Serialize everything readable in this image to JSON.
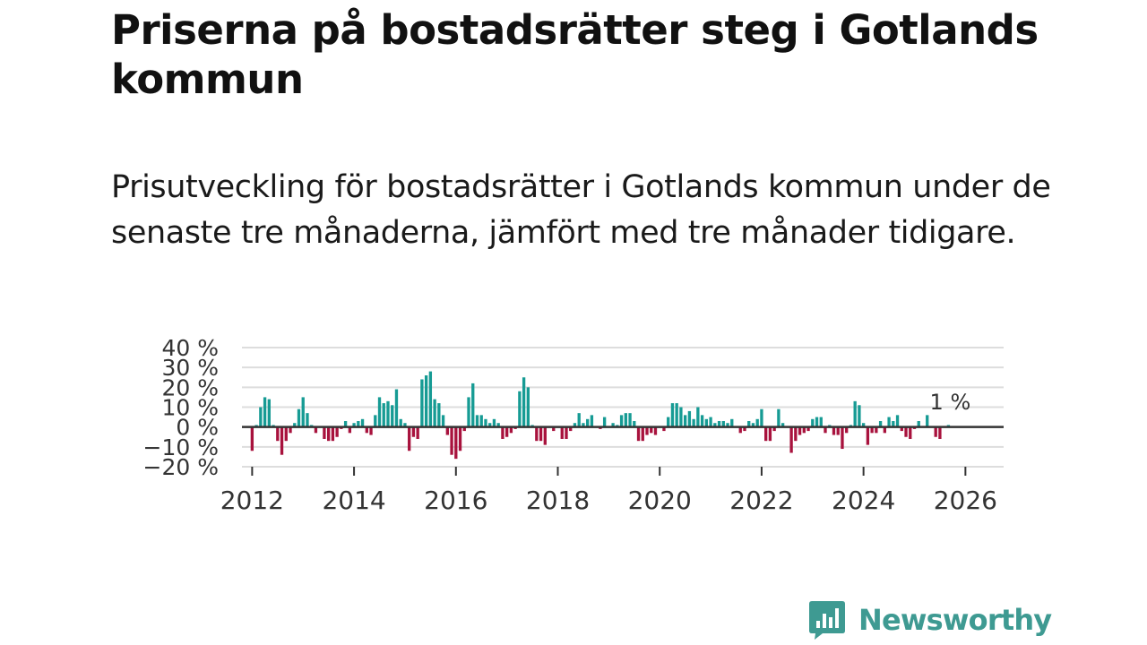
{
  "title": "Priserna på bostadsrätter steg i Gotlands kommun",
  "subtitle": "Prisutveckling för bostadsrätter i Gotlands kommun under de senaste tre månaderna, jämfört med tre månader tidigare.",
  "brand": {
    "name": "Newsworthy",
    "icon": "newsworthy-logo-icon",
    "color": "#3e9a92"
  },
  "colors": {
    "positive": "#169b94",
    "negative": "#a8123d",
    "baseline": "#333333",
    "grid": "#dddddd"
  },
  "chart_data": {
    "type": "bar",
    "title": "",
    "xlabel": "",
    "ylabel": "",
    "start": "2012-01",
    "interval": "month",
    "ylim": [
      -20,
      40
    ],
    "xlim": [
      2011.8,
      2026.75
    ],
    "yticks": [
      40,
      30,
      20,
      10,
      0,
      -10,
      -20
    ],
    "ytick_labels": [
      "40 %",
      "30 %",
      "20 %",
      "10 %",
      "0 %",
      "−10 %",
      "−20 %"
    ],
    "xticks": [
      2012,
      2014,
      2016,
      2018,
      2020,
      2022,
      2024,
      2026
    ],
    "xtick_labels": [
      "2012",
      "2014",
      "2016",
      "2018",
      "2020",
      "2022",
      "2024",
      "2026"
    ],
    "last_value_label": "1 %",
    "values": [
      -12,
      1,
      10,
      15,
      14,
      1,
      -7,
      -14,
      -7,
      -3,
      2,
      9,
      15,
      7,
      1,
      -3,
      0,
      -6,
      -7,
      -7,
      -5,
      -1,
      3,
      -3,
      2,
      3,
      4,
      -3,
      -4,
      6,
      15,
      12,
      13,
      11,
      19,
      4,
      2,
      -12,
      -5,
      -6,
      24,
      26,
      28,
      14,
      12,
      6,
      -4,
      -14,
      -16,
      -12,
      -2,
      15,
      22,
      6,
      6,
      4,
      2,
      4,
      2,
      -6,
      -5,
      -3,
      -1,
      18,
      25,
      20,
      1,
      -7,
      -7,
      -9,
      0,
      -2,
      0,
      -6,
      -6,
      -2,
      2,
      7,
      2,
      4,
      6,
      0,
      -1,
      5,
      0,
      2,
      1,
      6,
      7,
      7,
      3,
      -7,
      -7,
      -4,
      -3,
      -4,
      0,
      -2,
      5,
      12,
      12,
      10,
      6,
      8,
      4,
      10,
      6,
      4,
      5,
      2,
      3,
      3,
      2,
      4,
      0,
      -3,
      -2,
      3,
      2,
      4,
      9,
      -7,
      -7,
      -2,
      9,
      2,
      0,
      -13,
      -7,
      -4,
      -3,
      -2,
      4,
      5,
      5,
      -3,
      1,
      -4,
      -4,
      -11,
      -3,
      1,
      13,
      11,
      2,
      -9,
      -3,
      -3,
      3,
      -3,
      5,
      3,
      6,
      -2,
      -5,
      -6,
      -1,
      3,
      0,
      6,
      0,
      -5,
      -6,
      0,
      1
    ]
  }
}
